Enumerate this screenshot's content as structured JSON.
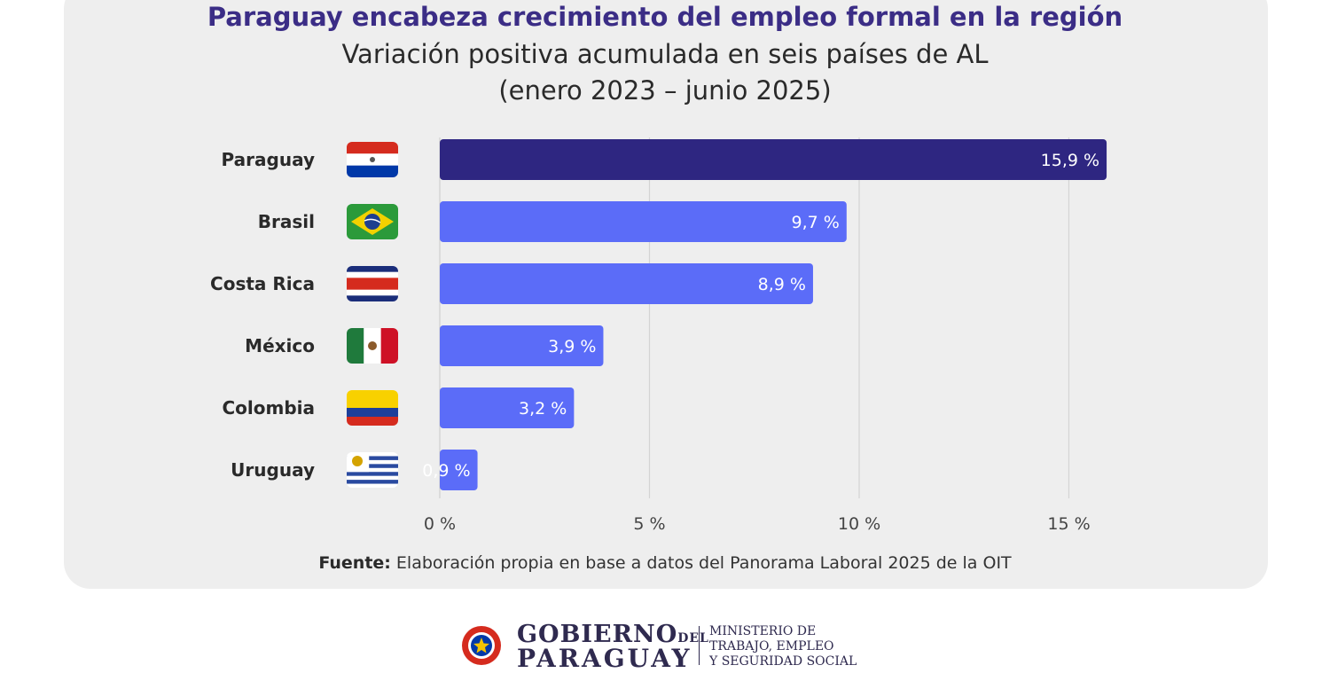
{
  "chart_data": {
    "type": "bar",
    "orientation": "horizontal",
    "title": "Paraguay encabeza crecimiento del empleo formal en la región",
    "subtitle": "Variación positiva acumulada en seis países de AL",
    "subtitle2": "(enero 2023 – junio 2025)",
    "categories": [
      "Paraguay",
      "Brasil",
      "Costa Rica",
      "México",
      "Colombia",
      "Uruguay"
    ],
    "values": [
      15.9,
      9.7,
      8.9,
      3.9,
      3.2,
      0.9
    ],
    "data_labels": [
      "15,9 %",
      "9,7 %",
      "8,9 %",
      "3,9 %",
      "3,2 %",
      "0,9 %"
    ],
    "xlim": [
      0,
      16.2
    ],
    "xticks": [
      0,
      5,
      10,
      15
    ],
    "xtick_labels": [
      "0 %",
      "5 %",
      "10 %",
      "15 %"
    ],
    "grid": true,
    "colors": {
      "highlight": "#2e2681",
      "default": "#5b6cf8"
    },
    "flags": [
      "paraguay-flag-icon",
      "brazil-flag-icon",
      "costa-rica-flag-icon",
      "mexico-flag-icon",
      "colombia-flag-icon",
      "uruguay-flag-icon"
    ]
  },
  "source": {
    "label": "Fuente:",
    "text": " Elaboración propia en base a datos del Panorama Laboral 2025 de la OIT"
  },
  "footer": {
    "gobierno": "GOBIERNO",
    "del": "DEL",
    "paraguay": "PARAGUAY",
    "ministerio_line1": "MINISTERIO DE",
    "ministerio_line2": "TRABAJO, EMPLEO",
    "ministerio_line3": "Y SEGURIDAD SOCIAL"
  }
}
